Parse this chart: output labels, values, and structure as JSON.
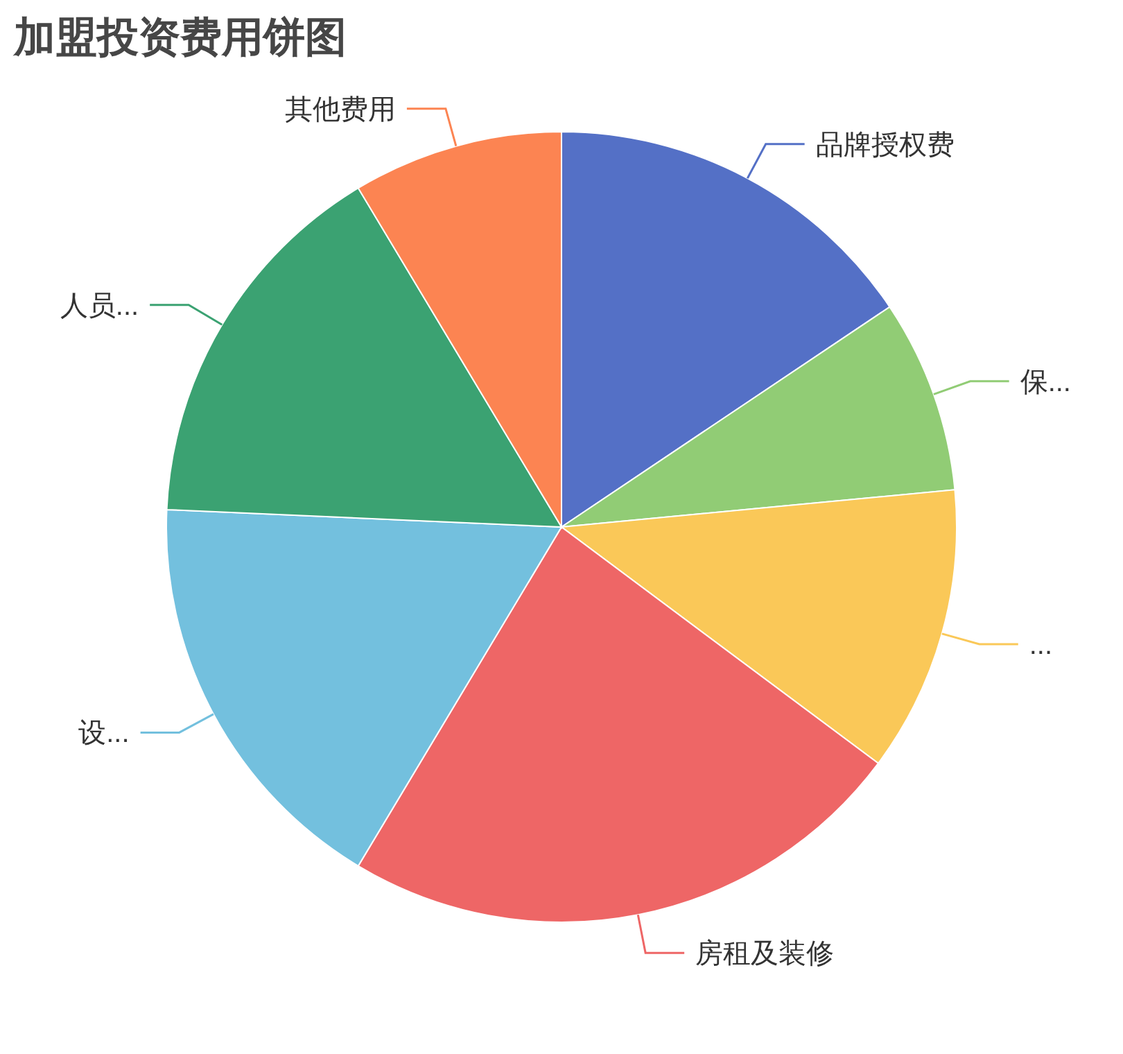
{
  "chart_data": {
    "type": "pie",
    "title": "加盟投资费用饼图",
    "categories": [
      "品牌授权费",
      "保...",
      "...",
      "房租及装修",
      "设...",
      "人员...",
      "其他费用"
    ],
    "values": [
      15.6,
      7.9,
      11.7,
      23.4,
      17.1,
      15.7,
      8.6
    ],
    "colors": [
      "#5470c6",
      "#91cc75",
      "#fac858",
      "#ee6666",
      "#73c0de",
      "#3ba272",
      "#fc8452"
    ]
  }
}
